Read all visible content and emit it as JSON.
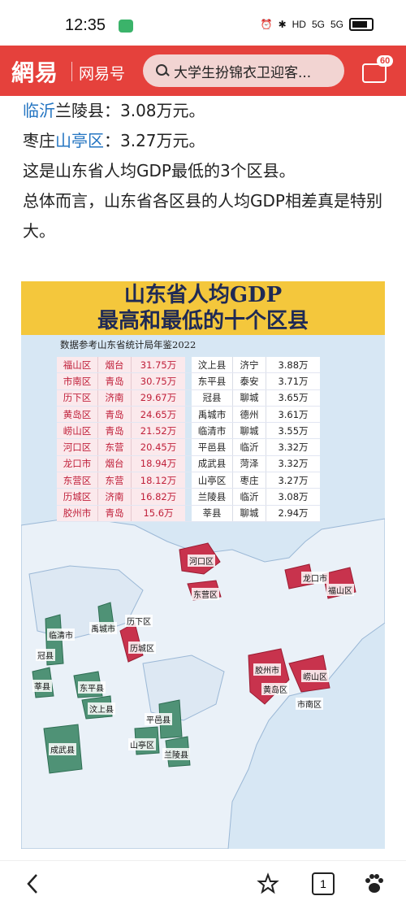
{
  "status_bar": {
    "time": "12:35",
    "net_labels": [
      "HD",
      "5G",
      "5G"
    ]
  },
  "nav": {
    "logo": "網易",
    "channel": "网易号",
    "search_text": "大学生扮锦衣卫迎客...",
    "msg_badge": "60"
  },
  "article": {
    "lines": [
      {
        "link": "临沂",
        "rest": "兰陵县：3.08万元。"
      },
      {
        "pre": "枣庄",
        "link": "山亭区",
        "rest": "：3.27万元。"
      }
    ],
    "para1": "这是山东省人均GDP最低的3个区县。",
    "para2": "总体而言，山东省各区县的人均GDP相差真是特别大。"
  },
  "figure": {
    "title_line1": "山东省人均GDP",
    "title_line2": "最高和最低的十个区县",
    "source": "数据参考山东省统计局年鉴2022",
    "highest": [
      [
        "福山区",
        "烟台",
        "31.75万"
      ],
      [
        "市南区",
        "青岛",
        "30.75万"
      ],
      [
        "历下区",
        "济南",
        "29.67万"
      ],
      [
        "黄岛区",
        "青岛",
        "24.65万"
      ],
      [
        "崂山区",
        "青岛",
        "21.52万"
      ],
      [
        "河口区",
        "东营",
        "20.45万"
      ],
      [
        "龙口市",
        "烟台",
        "18.94万"
      ],
      [
        "东营区",
        "东营",
        "18.12万"
      ],
      [
        "历城区",
        "济南",
        "16.82万"
      ],
      [
        "胶州市",
        "青岛",
        "15.6万"
      ]
    ],
    "lowest": [
      [
        "汶上县",
        "济宁",
        "3.88万"
      ],
      [
        "东平县",
        "泰安",
        "3.71万"
      ],
      [
        "冠县",
        "聊城",
        "3.65万"
      ],
      [
        "禹城市",
        "德州",
        "3.61万"
      ],
      [
        "临清市",
        "聊城",
        "3.55万"
      ],
      [
        "平邑县",
        "临沂",
        "3.32万"
      ],
      [
        "成武县",
        "菏泽",
        "3.32万"
      ],
      [
        "山亭区",
        "枣庄",
        "3.27万"
      ],
      [
        "兰陵县",
        "临沂",
        "3.08万"
      ],
      [
        "莘县",
        "聊城",
        "2.94万"
      ]
    ],
    "map_labels": {
      "hekou": "河口区",
      "dongying": "东营区",
      "longkou": "龙口市",
      "fushan": "福山区",
      "lixia": "历下区",
      "licheng": "历城区",
      "yucheng": "禹城市",
      "linqing": "临清市",
      "guanxian": "冠县",
      "shenxian": "莘县",
      "dongping": "东平县",
      "wenshang": "汶上县",
      "pingyi": "平邑县",
      "shanting": "山亭区",
      "lanling": "兰陵县",
      "chengwu": "成武县",
      "jiaozhou": "胶州市",
      "huangdao": "黄岛区",
      "laoshan": "崂山区",
      "shinan": "市南区"
    },
    "colors": {
      "high": "#c8334d",
      "low": "#4f9276",
      "title_bg": "#f4c73c",
      "sea": "#d7e7f4",
      "land": "#eaf1f8"
    }
  },
  "bottom_bar": {
    "tab_count": "1"
  }
}
